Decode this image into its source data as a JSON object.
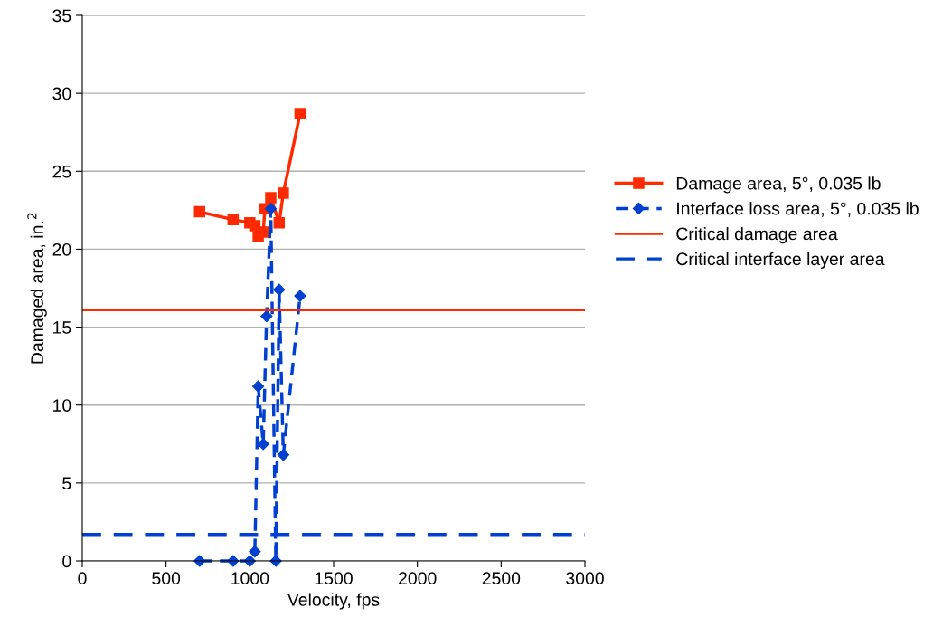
{
  "chart_data": {
    "type": "line",
    "xlabel": "Velocity, fps",
    "ylabel": "Damaged area, in.$^{2}$",
    "xlim": [
      0,
      3000
    ],
    "xticks": [
      0,
      500,
      1000,
      1500,
      2000,
      2500,
      3000
    ],
    "ylim": [
      0,
      35
    ],
    "yticks": [
      0,
      5,
      10,
      15,
      20,
      25,
      30,
      35
    ],
    "grid": "y",
    "legend": "right",
    "series": [
      {
        "name": "Damage area, 5°, 0.035 lb",
        "color": "#ff2a00",
        "marker": "square",
        "line_style": "solid",
        "x": [
          700,
          900,
          1000,
          1030,
          1050,
          1080,
          1090,
          1125,
          1175,
          1200,
          1300
        ],
        "values": [
          22.4,
          21.9,
          21.7,
          21.5,
          20.8,
          21.1,
          22.6,
          23.3,
          21.7,
          23.6,
          28.7
        ]
      },
      {
        "name": "Interface loss area, 5°, 0.035 lb",
        "color": "#0040d0",
        "marker": "diamond",
        "line_style": "dashed",
        "x": [
          700,
          900,
          1000,
          1030,
          1050,
          1080,
          1100,
          1125,
          1155,
          1175,
          1200,
          1300
        ],
        "values": [
          0,
          0,
          0,
          0.6,
          11.2,
          7.5,
          15.7,
          22.6,
          0,
          17.4,
          6.8,
          17.0
        ]
      }
    ],
    "ref_lines": [
      {
        "axis": "y",
        "value": 16.1,
        "label": "Critical damage area",
        "color": "#ff2a00",
        "line_style": "solid"
      },
      {
        "axis": "y",
        "value": 1.7,
        "label": "Critical interface layer area",
        "color": "#0040d0",
        "line_style": "dashed"
      }
    ]
  }
}
